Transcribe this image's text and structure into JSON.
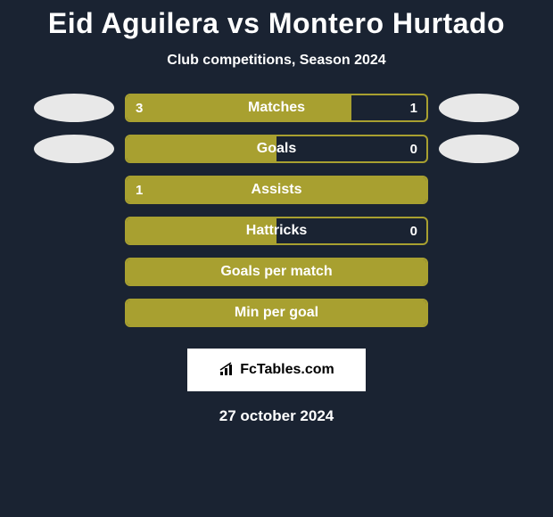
{
  "title": "Eid Aguilera vs Montero Hurtado",
  "subtitle": "Club competitions, Season 2024",
  "date": "27 october 2024",
  "colors": {
    "background": "#1a2332",
    "bar_fill": "#a8a030",
    "bar_border": "#a8a030",
    "text": "#ffffff",
    "avatar_bg": "#e8e8e8",
    "badge_bg": "#ffffff"
  },
  "brand": "FcTables.com",
  "stats": [
    {
      "label": "Matches",
      "left_value": "3",
      "right_value": "1",
      "fill_percent": 75,
      "show_left_avatar": true,
      "show_right_avatar": true
    },
    {
      "label": "Goals",
      "left_value": "",
      "right_value": "0",
      "fill_percent": 50,
      "show_left_avatar": true,
      "show_right_avatar": true
    },
    {
      "label": "Assists",
      "left_value": "1",
      "right_value": "",
      "fill_percent": 100,
      "show_left_avatar": false,
      "show_right_avatar": false
    },
    {
      "label": "Hattricks",
      "left_value": "",
      "right_value": "0",
      "fill_percent": 50,
      "show_left_avatar": false,
      "show_right_avatar": false
    },
    {
      "label": "Goals per match",
      "left_value": "",
      "right_value": "",
      "fill_percent": 100,
      "show_left_avatar": false,
      "show_right_avatar": false
    },
    {
      "label": "Min per goal",
      "left_value": "",
      "right_value": "",
      "fill_percent": 100,
      "show_left_avatar": false,
      "show_right_avatar": false
    }
  ]
}
